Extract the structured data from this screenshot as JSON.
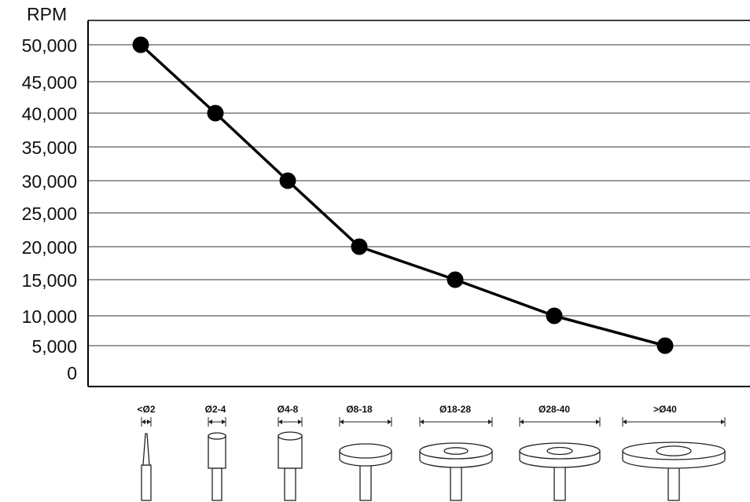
{
  "chart_data": {
    "type": "line",
    "ylabel": "RPM",
    "ylim": [
      0,
      50000
    ],
    "yticks": [
      "0",
      "5,000",
      "10,000",
      "15,000",
      "20,000",
      "25,000",
      "30,000",
      "35,000",
      "40,000",
      "45,000",
      "50,000"
    ],
    "grid": true,
    "categories": [
      "<Ø2",
      "Ø2-4",
      "Ø4-8",
      "Ø8-18",
      "Ø18-28",
      "Ø28-40",
      ">Ø40"
    ],
    "series": [
      {
        "values": [
          50000,
          40000,
          30000,
          20000,
          15000,
          10000,
          5000
        ]
      }
    ],
    "line_color": "#000000"
  }
}
